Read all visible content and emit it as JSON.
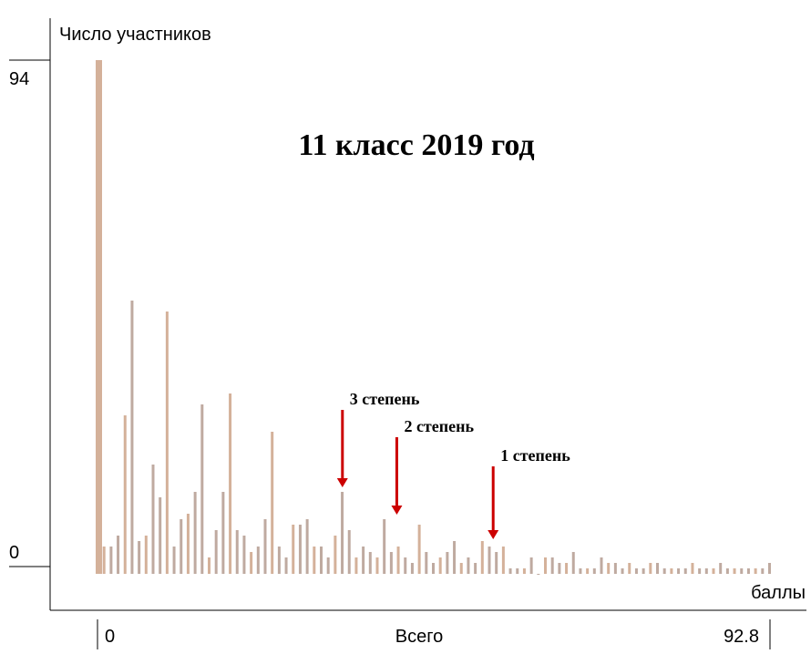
{
  "chart_data": {
    "type": "bar",
    "title": "11 класс 2019 год",
    "ylabel": "Число участников",
    "xlabel": "баллы",
    "x_axis_caption": "Всего",
    "y_ticks": [
      "0",
      "94"
    ],
    "x_ticks": [
      "0",
      "92.8"
    ],
    "ylim": [
      0,
      94
    ],
    "xlim": [
      0,
      92.8
    ],
    "grid": false,
    "bar_colors": {
      "primary": "#d4b19a",
      "secondary": "#bfaaa0",
      "tertiary": "#ccb5aa"
    },
    "series": [
      {
        "values": [
          94,
          5,
          5,
          7,
          29,
          50,
          6,
          7,
          20,
          14,
          48,
          5,
          10,
          11,
          15,
          31,
          3,
          8,
          15,
          33,
          8,
          7,
          4,
          5,
          10,
          26,
          5,
          3,
          9,
          9,
          10,
          5,
          5,
          3,
          7,
          15,
          8,
          3,
          5,
          4,
          3,
          10,
          4,
          5,
          3,
          2,
          9,
          4,
          2,
          3,
          4,
          6,
          2,
          3,
          2,
          6,
          5,
          4,
          5,
          1,
          1,
          1,
          3,
          0,
          3,
          3,
          2,
          2,
          4,
          1,
          1,
          1,
          3,
          2,
          2,
          1,
          2,
          1,
          1,
          2,
          2,
          1,
          1,
          1,
          1,
          2,
          1,
          1,
          1,
          2,
          1,
          1,
          1,
          1,
          1,
          1,
          2
        ]
      }
    ],
    "annotations": [
      {
        "text": "3 степень",
        "x": 33.8
      },
      {
        "text": "2 степень",
        "x": 41.3
      },
      {
        "text": "1 степень",
        "x": 54.6
      }
    ],
    "annotation_color": "#cc0000"
  }
}
